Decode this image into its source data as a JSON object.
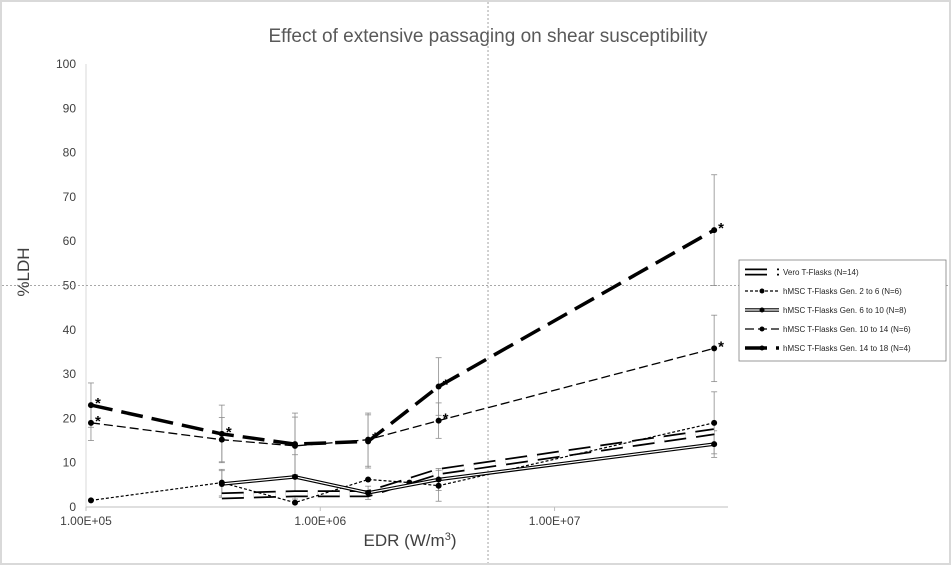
{
  "chart_data": {
    "type": "line",
    "title": "Effect of extensive passaging on shear susceptibility",
    "xlabel": "EDR (W/m",
    "xlabel_sup": "3",
    "xlabel_end": ")",
    "ylabel": "%LDH",
    "xscale": "log",
    "xlim": [
      100000,
      55000000
    ],
    "ylim": [
      0,
      100
    ],
    "y_ticks": [
      "0",
      "10",
      "20",
      "30",
      "40",
      "50",
      "60",
      "70",
      "80",
      "90",
      "100"
    ],
    "x_ticks": [
      {
        "value": 100000,
        "label": "1.00E+05"
      },
      {
        "value": 1000000,
        "label": "1.00E+06"
      },
      {
        "value": 10000000,
        "label": "1.00E+07"
      }
    ],
    "grid": false,
    "legend_position": "right",
    "series": [
      {
        "name": "Vero T-Flasks (N=14)",
        "style": "hollow",
        "points": [
          {
            "x": 380000,
            "y": 2.5
          },
          {
            "x": 780000,
            "y": 3
          },
          {
            "x": 1600000,
            "y": 3
          },
          {
            "x": 3200000,
            "y": 8
          },
          {
            "x": 48000000,
            "y": 17
          }
        ]
      },
      {
        "name": "hMSC T-Flasks Gen. 2 to 6 (N=6)",
        "style": "dotted",
        "points": [
          {
            "x": 105000,
            "y": 1.5
          },
          {
            "x": 380000,
            "y": 5.5
          },
          {
            "x": 780000,
            "y": 1
          },
          {
            "x": 1600000,
            "y": 6.2
          },
          {
            "x": 2400000,
            "y": 5.5
          },
          {
            "x": 3200000,
            "y": 4.8
          },
          {
            "x": 48000000,
            "y": 19
          }
        ],
        "error": [
          0,
          3,
          0,
          0,
          0,
          3.5,
          7
        ]
      },
      {
        "name": "hMSC T-Flasks Gen. 6 to 10 (N=8)",
        "style": "double",
        "points": [
          {
            "x": 380000,
            "y": 5.2
          },
          {
            "x": 780000,
            "y": 6.8
          },
          {
            "x": 1600000,
            "y": 3.2
          },
          {
            "x": 3200000,
            "y": 6.2
          },
          {
            "x": 48000000,
            "y": 14.2
          }
        ],
        "error": [
          3,
          5,
          1.5,
          2.5,
          3
        ]
      },
      {
        "name": "hMSC T-Flasks Gen. 10 to 14 (N=6)",
        "style": "dashed-thin",
        "points": [
          {
            "x": 105000,
            "y": 19
          },
          {
            "x": 380000,
            "y": 15.2
          },
          {
            "x": 780000,
            "y": 13.8
          },
          {
            "x": 1600000,
            "y": 15.2
          },
          {
            "x": 3200000,
            "y": 19.5
          },
          {
            "x": 48000000,
            "y": 35.8
          }
        ],
        "error": [
          4,
          5,
          6.5,
          6,
          4,
          7.5
        ],
        "significant": [
          true,
          false,
          false,
          true,
          true,
          true
        ]
      },
      {
        "name": "hMSC T-Flasks Gen. 14 to 18  (N=4)",
        "style": "dashed-thick",
        "points": [
          {
            "x": 105000,
            "y": 23
          },
          {
            "x": 380000,
            "y": 16.5
          },
          {
            "x": 780000,
            "y": 14.2
          },
          {
            "x": 1600000,
            "y": 14.8
          },
          {
            "x": 3200000,
            "y": 27.2
          },
          {
            "x": 48000000,
            "y": 62.5
          }
        ],
        "error": [
          5,
          6.5,
          7,
          6,
          6.5,
          12.5
        ],
        "significant": [
          true,
          true,
          false,
          false,
          true,
          true
        ]
      }
    ],
    "annotations": {
      "star": "*"
    }
  }
}
